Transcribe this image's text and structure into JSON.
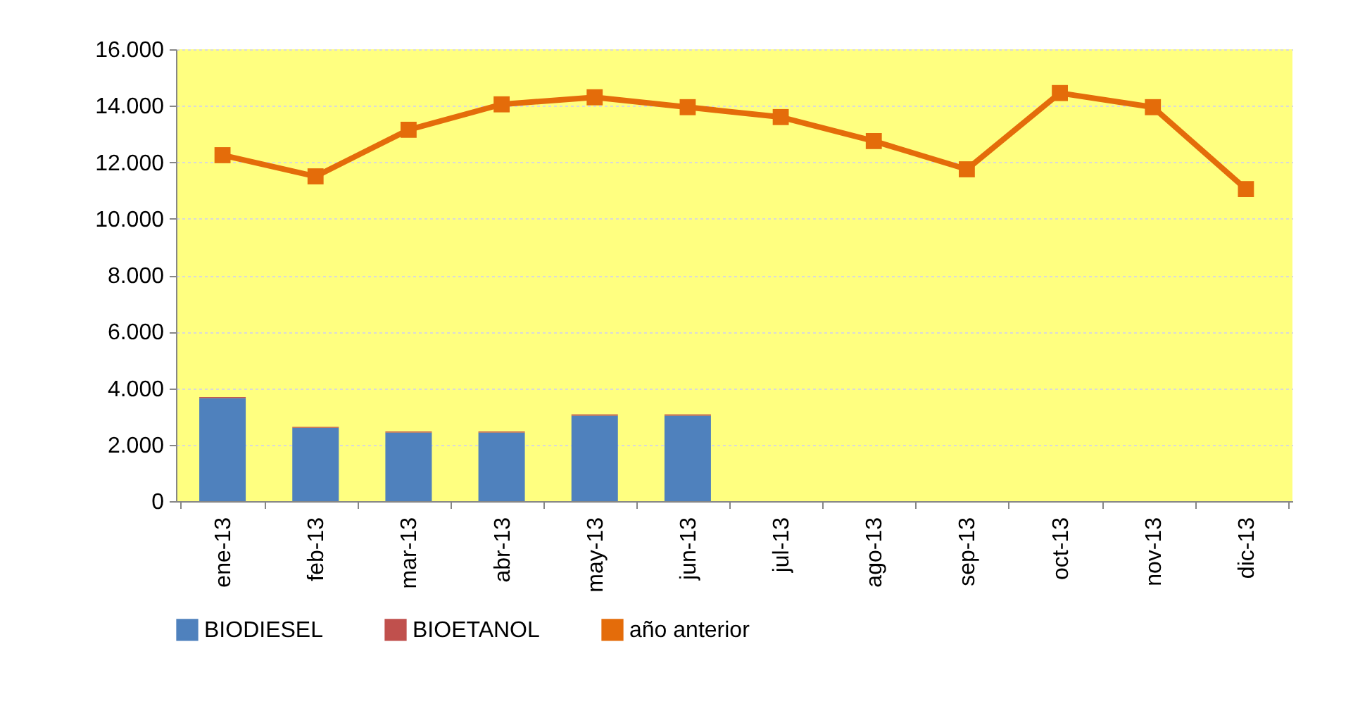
{
  "chart_data": {
    "type": "bar",
    "stacked": true,
    "categories": [
      "ene-13",
      "feb-13",
      "mar-13",
      "abr-13",
      "may-13",
      "jun-13",
      "jul-13",
      "ago-13",
      "sep-13",
      "oct-13",
      "nov-13",
      "dic-13"
    ],
    "series": [
      {
        "name": "BIODIESEL",
        "color": "#4f81bd",
        "values": [
          3650,
          2600,
          2430,
          2430,
          3030,
          3030,
          null,
          null,
          null,
          null,
          null,
          null
        ]
      },
      {
        "name": "BIOETANOL",
        "color": "#c0504d",
        "values": [
          40,
          30,
          40,
          40,
          40,
          40,
          null,
          null,
          null,
          null,
          null,
          null
        ]
      },
      {
        "name": "año anterior",
        "type": "line",
        "color": "#e46c0a",
        "marker": "square",
        "values": [
          12250,
          11500,
          13150,
          14050,
          14300,
          13950,
          13600,
          12750,
          11750,
          14450,
          13950,
          11050
        ]
      }
    ],
    "ylim": [
      0,
      16000
    ],
    "yticks": [
      0,
      {
        "value": 2000,
        "label": "2.000"
      },
      {
        "value": 4000,
        "label": "4.000"
      },
      {
        "value": 6000,
        "label": "6.000"
      },
      {
        "value": 8000,
        "label": "8.000"
      },
      {
        "value": 10000,
        "label": "10.000"
      },
      {
        "value": 12000,
        "label": "12.000"
      },
      {
        "value": 14000,
        "label": "14.000"
      },
      {
        "value": 16000,
        "label": "16.000"
      }
    ],
    "grid": "y",
    "legend": "bottom"
  }
}
